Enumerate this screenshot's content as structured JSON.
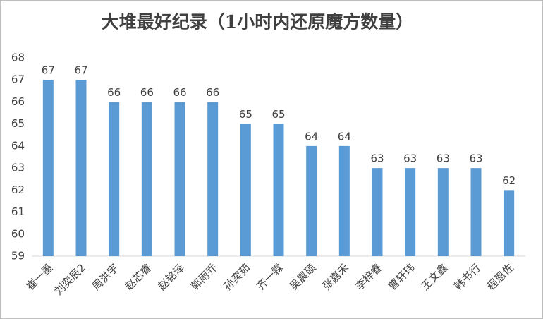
{
  "chart_data": {
    "type": "bar",
    "title": "大堆最好纪录（1小时内还原魔方数量）",
    "categories": [
      "崔一墨",
      "刘奕辰2",
      "周洪宇",
      "赵芯睿",
      "赵铭泽",
      "郭雨乔",
      "孙奕茹",
      "齐一霖",
      "吴晨硕",
      "张嘉禾",
      "李梓睿",
      "曹轩玮",
      "王文鑫",
      "韩书行",
      "程恩佐"
    ],
    "values": [
      67,
      67,
      66,
      66,
      66,
      66,
      65,
      65,
      64,
      64,
      63,
      63,
      63,
      63,
      62
    ],
    "color": "#5b9bd5",
    "ylim": [
      59,
      68
    ],
    "yticks": [
      59,
      60,
      61,
      62,
      63,
      64,
      65,
      66,
      67,
      68
    ],
    "grid": false
  }
}
